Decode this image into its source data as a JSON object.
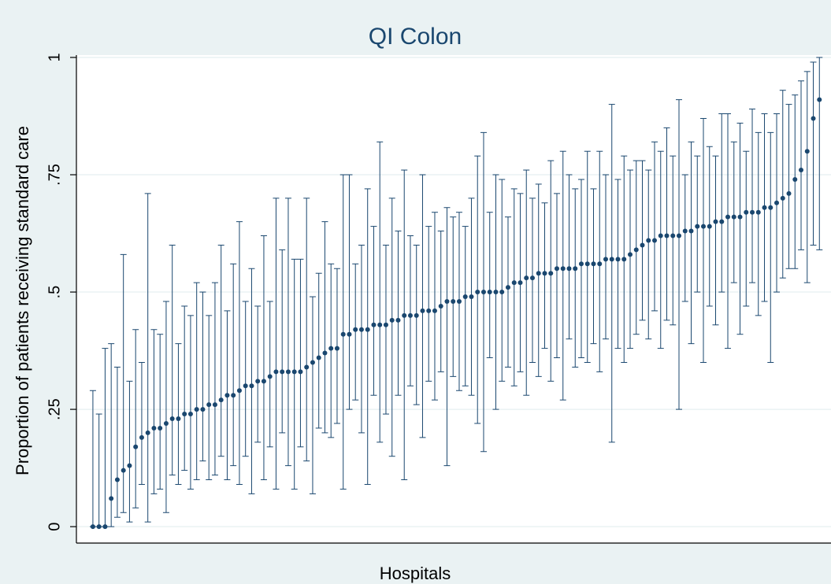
{
  "chart_data": {
    "type": "errorbar",
    "title": "QI Colon",
    "x_label": "Hospitals",
    "y_label": "Proportion of patients receiving standard care",
    "color": "#1a476f",
    "grid": true,
    "ylim": [
      -0.035,
      1.005
    ],
    "yticks": [
      0,
      {
        "value": 0.25,
        "label": ".25"
      },
      {
        "value": 0.5,
        "label": ".5"
      },
      {
        "value": 0.75,
        "label": ".75"
      },
      1
    ],
    "xlim": [
      -1.7,
      121.9
    ],
    "x": [
      1,
      2,
      3,
      4,
      5,
      6,
      7,
      8,
      9,
      10,
      11,
      12,
      13,
      14,
      15,
      16,
      17,
      18,
      19,
      20,
      21,
      22,
      23,
      24,
      25,
      26,
      27,
      28,
      29,
      30,
      31,
      32,
      33,
      34,
      35,
      36,
      37,
      38,
      39,
      40,
      41,
      42,
      43,
      44,
      45,
      46,
      47,
      48,
      49,
      50,
      51,
      52,
      53,
      54,
      55,
      56,
      57,
      58,
      59,
      60,
      61,
      62,
      63,
      64,
      65,
      66,
      67,
      68,
      69,
      70,
      71,
      72,
      73,
      74,
      75,
      76,
      77,
      78,
      79,
      80,
      81,
      82,
      83,
      84,
      85,
      86,
      87,
      88,
      89,
      90,
      91,
      92,
      93,
      94,
      95,
      96,
      97,
      98,
      99,
      100,
      101,
      102,
      103,
      104,
      105,
      106,
      107,
      108,
      109,
      110,
      111,
      112,
      113,
      114,
      115,
      116,
      117,
      118,
      119,
      120
    ],
    "values": [
      0,
      0,
      0,
      0.06,
      0.1,
      0.12,
      0.13,
      0.17,
      0.19,
      0.2,
      0.21,
      0.21,
      0.22,
      0.23,
      0.23,
      0.24,
      0.24,
      0.25,
      0.25,
      0.26,
      0.26,
      0.27,
      0.28,
      0.28,
      0.29,
      0.3,
      0.3,
      0.31,
      0.31,
      0.32,
      0.33,
      0.33,
      0.33,
      0.33,
      0.33,
      0.34,
      0.35,
      0.36,
      0.37,
      0.38,
      0.38,
      0.41,
      0.41,
      0.42,
      0.42,
      0.42,
      0.43,
      0.43,
      0.43,
      0.44,
      0.44,
      0.45,
      0.45,
      0.45,
      0.46,
      0.46,
      0.46,
      0.47,
      0.48,
      0.48,
      0.48,
      0.49,
      0.49,
      0.5,
      0.5,
      0.5,
      0.5,
      0.5,
      0.51,
      0.52,
      0.52,
      0.53,
      0.53,
      0.54,
      0.54,
      0.54,
      0.55,
      0.55,
      0.55,
      0.55,
      0.56,
      0.56,
      0.56,
      0.56,
      0.57,
      0.57,
      0.57,
      0.57,
      0.58,
      0.59,
      0.6,
      0.61,
      0.61,
      0.62,
      0.62,
      0.62,
      0.62,
      0.63,
      0.63,
      0.64,
      0.64,
      0.64,
      0.65,
      0.65,
      0.66,
      0.66,
      0.66,
      0.67,
      0.67,
      0.67,
      0.68,
      0.68,
      0.69,
      0.7,
      0.71,
      0.74,
      0.76,
      0.8,
      0.87,
      0.91
    ],
    "lower": [
      0,
      0,
      0,
      0,
      0.02,
      0.03,
      0.01,
      0.04,
      0.09,
      0.01,
      0.07,
      0.08,
      0.03,
      0.11,
      0.09,
      0.12,
      0.08,
      0.1,
      0.14,
      0.1,
      0.11,
      0.15,
      0.1,
      0.13,
      0.09,
      0.15,
      0.07,
      0.18,
      0.1,
      0.17,
      0.08,
      0.2,
      0.13,
      0.08,
      0.17,
      0.14,
      0.07,
      0.21,
      0.2,
      0.19,
      0.22,
      0.08,
      0.25,
      0.27,
      0.2,
      0.09,
      0.28,
      0.18,
      0.24,
      0.15,
      0.28,
      0.1,
      0.3,
      0.26,
      0.19,
      0.31,
      0.27,
      0.33,
      0.13,
      0.32,
      0.29,
      0.3,
      0.28,
      0.22,
      0.16,
      0.36,
      0.25,
      0.31,
      0.34,
      0.3,
      0.33,
      0.28,
      0.35,
      0.32,
      0.38,
      0.31,
      0.36,
      0.27,
      0.4,
      0.34,
      0.36,
      0.35,
      0.39,
      0.33,
      0.4,
      0.18,
      0.38,
      0.35,
      0.38,
      0.41,
      0.44,
      0.4,
      0.46,
      0.38,
      0.44,
      0.43,
      0.25,
      0.48,
      0.39,
      0.5,
      0.35,
      0.47,
      0.43,
      0.5,
      0.38,
      0.52,
      0.41,
      0.47,
      0.52,
      0.45,
      0.48,
      0.35,
      0.5,
      0.53,
      0.55,
      0.55,
      0.59,
      0.52,
      0.6,
      0.59
    ],
    "upper": [
      0.29,
      0.24,
      0.38,
      0.39,
      0.34,
      0.58,
      0.31,
      0.42,
      0.35,
      0.71,
      0.42,
      0.41,
      0.48,
      0.6,
      0.39,
      0.47,
      0.45,
      0.52,
      0.5,
      0.45,
      0.52,
      0.6,
      0.46,
      0.56,
      0.65,
      0.48,
      0.55,
      0.47,
      0.62,
      0.48,
      0.7,
      0.59,
      0.7,
      0.57,
      0.57,
      0.7,
      0.49,
      0.54,
      0.65,
      0.56,
      0.55,
      0.75,
      0.75,
      0.56,
      0.6,
      0.72,
      0.64,
      0.82,
      0.6,
      0.7,
      0.63,
      0.76,
      0.62,
      0.6,
      0.75,
      0.64,
      0.67,
      0.63,
      0.68,
      0.66,
      0.67,
      0.64,
      0.7,
      0.79,
      0.84,
      0.67,
      0.75,
      0.74,
      0.66,
      0.72,
      0.71,
      0.76,
      0.7,
      0.73,
      0.69,
      0.78,
      0.71,
      0.8,
      0.75,
      0.72,
      0.74,
      0.8,
      0.72,
      0.8,
      0.75,
      0.9,
      0.74,
      0.79,
      0.76,
      0.78,
      0.78,
      0.76,
      0.82,
      0.8,
      0.85,
      0.79,
      0.91,
      0.75,
      0.82,
      0.79,
      0.87,
      0.81,
      0.79,
      0.88,
      0.88,
      0.82,
      0.86,
      0.8,
      0.89,
      0.84,
      0.88,
      0.84,
      0.88,
      0.93,
      0.9,
      0.92,
      0.95,
      0.97,
      0.99,
      1.0
    ]
  }
}
